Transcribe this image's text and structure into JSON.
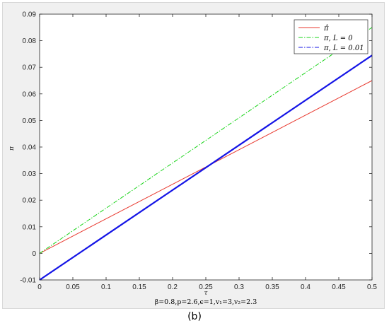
{
  "panel_label": "(b)",
  "colors": {
    "pi_hat": "#e8392f",
    "pi_L0": "#19d419",
    "pi_L001": "#1414e6",
    "axes_bg": "#ffffff",
    "figure_bg": "#f0f0f0"
  },
  "chart_data": {
    "type": "line",
    "xlabel": "τ",
    "ylabel": "π",
    "caption": "β=0.8,p=2.6,ϵ=1,v₁=3,v₂=2.3",
    "xlim": [
      0,
      0.5
    ],
    "ylim": [
      -0.01,
      0.09
    ],
    "x_ticks": [
      0,
      0.05,
      0.1,
      0.15,
      0.2,
      0.25,
      0.3,
      0.35,
      0.4,
      0.45,
      0.5
    ],
    "x_tick_labels": [
      "0",
      "0.05",
      "0.1",
      "0.15",
      "0.2",
      "0.25",
      "0.3",
      "0.35",
      "0.4",
      "0.45",
      "0.5"
    ],
    "y_ticks": [
      -0.01,
      0,
      0.01,
      0.02,
      0.03,
      0.04,
      0.05,
      0.06,
      0.07,
      0.08,
      0.09
    ],
    "y_tick_labels": [
      "-0.01",
      "0",
      "0.01",
      "0.02",
      "0.03",
      "0.04",
      "0.05",
      "0.06",
      "0.07",
      "0.08",
      "0.09"
    ],
    "grid": false,
    "legend_position": "top-right",
    "series": [
      {
        "name": "π̂",
        "style": "solid",
        "color": "#e8392f",
        "width": 1,
        "x": [
          0,
          0.5
        ],
        "y": [
          0,
          0.065
        ]
      },
      {
        "name": "π, L = 0",
        "style": "dashdot",
        "color": "#19d419",
        "width": 1,
        "x": [
          0,
          0.5
        ],
        "y": [
          0,
          0.085
        ]
      },
      {
        "name": "π, L = 0.01",
        "style": "dashdot",
        "color": "#1414e6",
        "width": 2.2,
        "x": [
          0,
          0.5
        ],
        "y": [
          -0.01,
          0.0745
        ]
      }
    ]
  }
}
